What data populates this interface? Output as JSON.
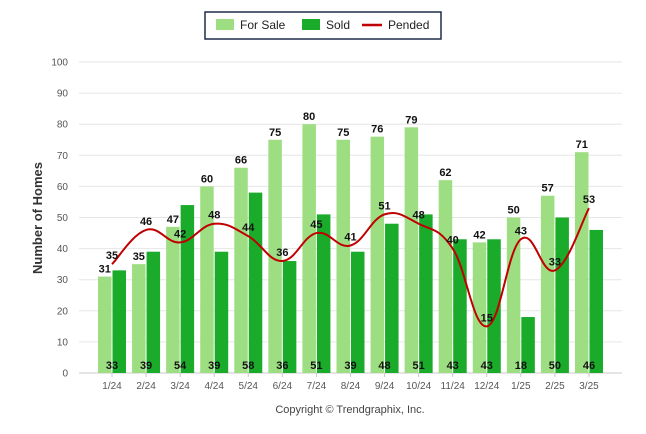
{
  "chart_data": {
    "type": "bar",
    "categories": [
      "1/24",
      "2/24",
      "3/24",
      "4/24",
      "5/24",
      "6/24",
      "7/24",
      "8/24",
      "9/24",
      "10/24",
      "11/24",
      "12/24",
      "1/25",
      "2/25",
      "3/25"
    ],
    "series": [
      {
        "name": "For Sale",
        "type": "bar",
        "color": "#9ede82",
        "values": [
          31,
          35,
          47,
          60,
          66,
          75,
          80,
          75,
          76,
          79,
          62,
          42,
          50,
          57,
          71
        ]
      },
      {
        "name": "Sold",
        "type": "bar",
        "color": "#1aab2b",
        "values": [
          33,
          39,
          54,
          39,
          58,
          36,
          51,
          39,
          48,
          51,
          43,
          43,
          18,
          50,
          46
        ]
      },
      {
        "name": "Pended",
        "type": "line",
        "color": "#c00000",
        "values": [
          35,
          46,
          42,
          48,
          44,
          36,
          45,
          41,
          51,
          48,
          40,
          15,
          43,
          33,
          53
        ]
      }
    ],
    "ylabel": "Number of Homes",
    "ylim": [
      0,
      100
    ],
    "yticks": [
      0,
      10,
      20,
      30,
      40,
      50,
      60,
      70,
      80,
      90,
      100
    ],
    "grid": true,
    "legend_position": "top-center"
  },
  "credit": "Copyright © Trendgraphix, Inc."
}
